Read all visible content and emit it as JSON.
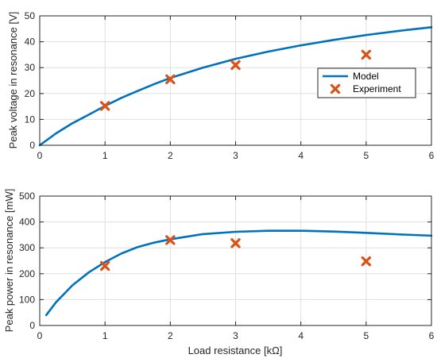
{
  "chart_data": [
    {
      "type": "line",
      "title": "",
      "xlabel": "",
      "ylabel": "Peak voltage in resonance [V]",
      "xlim": [
        0,
        6
      ],
      "ylim": [
        0,
        50
      ],
      "xticks": [
        0,
        1,
        2,
        3,
        4,
        5,
        6
      ],
      "yticks": [
        0,
        10,
        20,
        30,
        40,
        50
      ],
      "grid": true,
      "legend": "inside-right",
      "series": [
        {
          "name": "Model",
          "kind": "line",
          "color": "#0072BD",
          "x": [
            0,
            0.25,
            0.5,
            0.75,
            1,
            1.25,
            1.5,
            1.75,
            2,
            2.5,
            3,
            3.5,
            4,
            4.5,
            5,
            5.5,
            6
          ],
          "y": [
            0,
            4.6,
            8.5,
            11.8,
            15.2,
            18.3,
            21.0,
            23.6,
            26.0,
            30.0,
            33.4,
            36.2,
            38.6,
            40.7,
            42.6,
            44.2,
            45.6
          ]
        },
        {
          "name": "Experiment",
          "kind": "marker",
          "marker": "x",
          "color": "#D95319",
          "x": [
            1,
            2,
            3,
            5
          ],
          "y": [
            15.2,
            25.5,
            31.0,
            35.0
          ]
        }
      ]
    },
    {
      "type": "line",
      "title": "",
      "xlabel": "Load resistance [kΩ]",
      "ylabel": "Peak power in resonance [mW]",
      "xlim": [
        0,
        6
      ],
      "ylim": [
        0,
        500
      ],
      "xticks": [
        0,
        1,
        2,
        3,
        4,
        5,
        6
      ],
      "yticks": [
        0,
        100,
        200,
        300,
        400,
        500
      ],
      "grid": true,
      "series": [
        {
          "name": "Model",
          "kind": "line",
          "color": "#0072BD",
          "x": [
            0.1,
            0.25,
            0.5,
            0.75,
            1,
            1.25,
            1.5,
            1.75,
            2,
            2.5,
            3,
            3.5,
            4,
            4.5,
            5,
            5.5,
            6
          ],
          "y": [
            40,
            90,
            155,
            205,
            245,
            278,
            303,
            320,
            333,
            353,
            362,
            366,
            366,
            363,
            358,
            352,
            347
          ]
        },
        {
          "name": "Experiment",
          "kind": "marker",
          "marker": "x",
          "color": "#D95319",
          "x": [
            1,
            2,
            3,
            5
          ],
          "y": [
            230,
            330,
            318,
            248
          ]
        }
      ]
    }
  ]
}
